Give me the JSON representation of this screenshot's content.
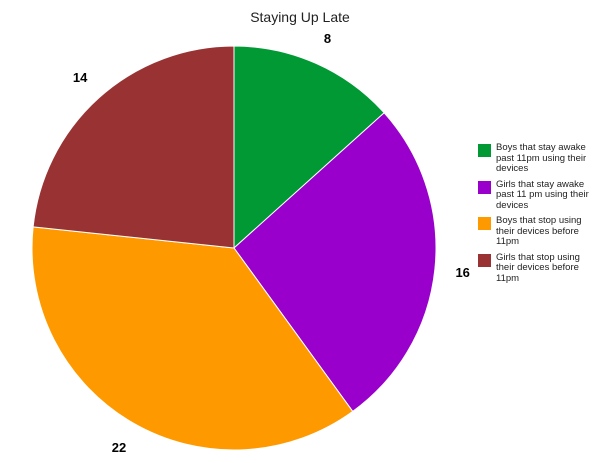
{
  "chart_data": {
    "type": "pie",
    "title": "Staying Up Late",
    "categories": [
      "Boys that stay awake past 11pm using their devices",
      "Girls that stay awake past 11 pm using their devices",
      "Boys that stop using their devices before 11pm",
      "Girls that stop using their devices before 11pm"
    ],
    "values": [
      8,
      16,
      22,
      14
    ],
    "data_labels": [
      "8",
      "16",
      "22",
      "14"
    ],
    "colors": [
      "#009933",
      "#9900cc",
      "#ff9900",
      "#993333"
    ],
    "start_angle_deg": 0,
    "direction": "clockwise",
    "legend_position": "right"
  }
}
